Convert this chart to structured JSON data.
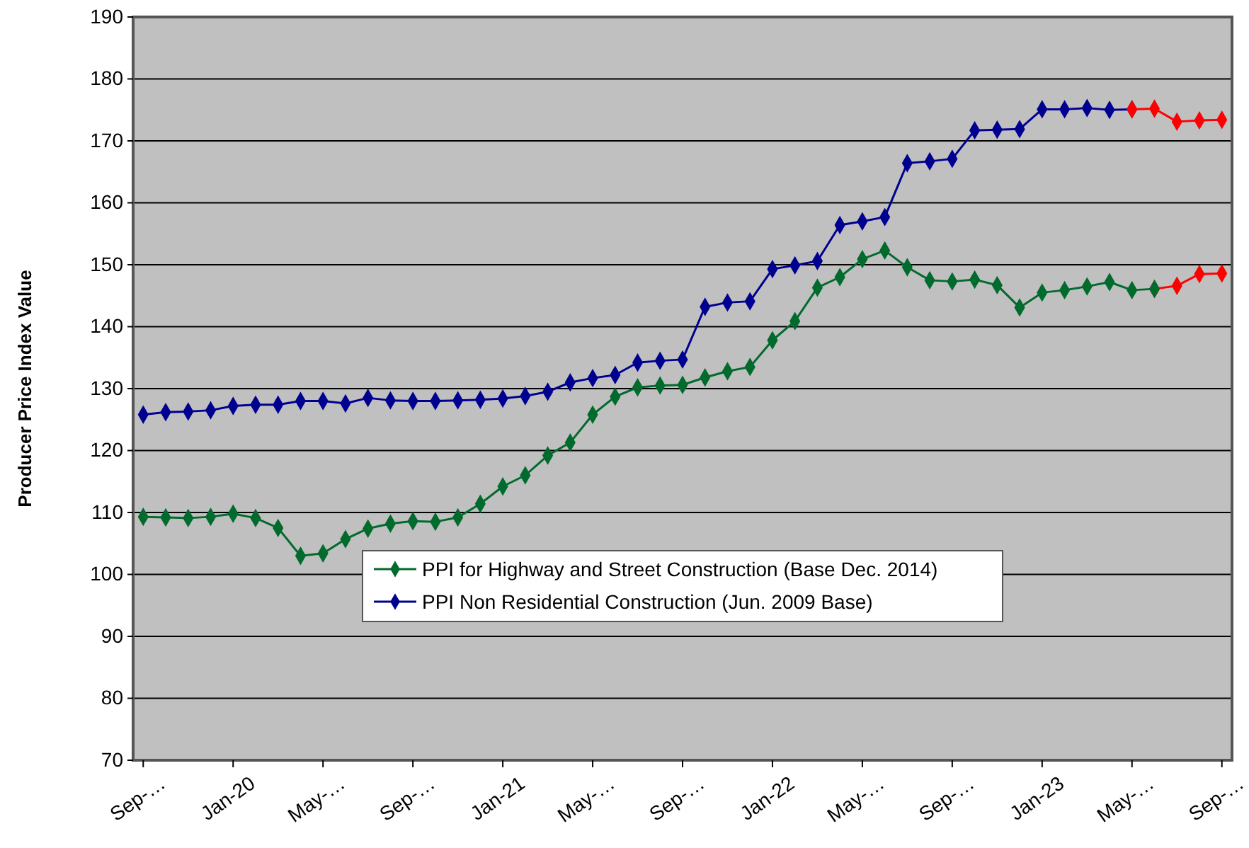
{
  "chart_data": {
    "type": "line",
    "ylabel": "Producer Price Index Value",
    "categories": [
      "Sep-…",
      null,
      null,
      null,
      "Jan-20",
      null,
      null,
      null,
      "May-…",
      null,
      null,
      null,
      "Sep-…",
      null,
      null,
      null,
      "Jan-21",
      null,
      null,
      null,
      "May-…",
      null,
      null,
      null,
      "Sep-…",
      null,
      null,
      null,
      "Jan-22",
      null,
      null,
      null,
      "May-…",
      null,
      null,
      null,
      "Sep-…",
      null,
      null,
      null,
      "Jan-23",
      null,
      null,
      null,
      "May-…",
      null,
      null,
      null,
      "Sep-…"
    ],
    "series": [
      {
        "color": "#ff0000",
        "values": [
          null,
          null,
          null,
          null,
          null,
          null,
          null,
          null,
          null,
          null,
          null,
          null,
          null,
          null,
          null,
          null,
          null,
          null,
          null,
          null,
          null,
          null,
          null,
          null,
          null,
          null,
          null,
          null,
          null,
          null,
          null,
          null,
          null,
          null,
          null,
          null,
          null,
          null,
          null,
          null,
          null,
          null,
          null,
          null,
          null,
          146.1,
          146.6,
          148.5,
          148.6
        ]
      },
      {
        "name": "PPI for Highway and Street Construction (Base Dec. 2014)",
        "color": "#006b2d",
        "values": [
          109.3,
          109.2,
          109.1,
          109.3,
          109.8,
          109.1,
          107.5,
          103.0,
          103.4,
          105.7,
          107.4,
          108.2,
          108.6,
          108.5,
          109.2,
          111.4,
          114.2,
          116.0,
          119.2,
          121.3,
          125.8,
          128.7,
          130.2,
          130.5,
          130.6,
          131.8,
          132.8,
          133.5,
          137.8,
          140.9,
          146.3,
          148.0,
          150.9,
          152.3,
          149.6,
          147.5,
          147.3,
          147.6,
          146.7,
          143.1,
          145.5,
          145.9,
          146.5,
          147.2,
          145.9,
          146.1,
          null,
          null,
          null
        ]
      },
      {
        "name": "PPI Non Residential Construction (Jun. 2009 Base)",
        "color": "#000090",
        "values": [
          125.8,
          126.2,
          126.3,
          126.5,
          127.2,
          127.4,
          127.4,
          128.0,
          128.0,
          127.6,
          128.5,
          128.1,
          128.0,
          128.0,
          128.1,
          128.2,
          128.4,
          128.8,
          129.5,
          131.0,
          131.7,
          132.2,
          134.2,
          134.5,
          134.7,
          143.2,
          143.9,
          144.1,
          149.3,
          149.9,
          150.6,
          156.4,
          157.0,
          157.7,
          166.4,
          166.7,
          167.1,
          171.7,
          171.8,
          171.9,
          175.1,
          175.1,
          175.3,
          175.0,
          175.1,
          null,
          null,
          null,
          null
        ]
      },
      {
        "color": "#ff0000",
        "values": [
          null,
          null,
          null,
          null,
          null,
          null,
          null,
          null,
          null,
          null,
          null,
          null,
          null,
          null,
          null,
          null,
          null,
          null,
          null,
          null,
          null,
          null,
          null,
          null,
          null,
          null,
          null,
          null,
          null,
          null,
          null,
          null,
          null,
          null,
          null,
          null,
          null,
          null,
          null,
          null,
          null,
          null,
          null,
          null,
          175.1,
          175.2,
          173.1,
          173.3,
          173.4
        ]
      }
    ],
    "ylim": [
      70,
      190
    ],
    "yticks": [
      70,
      80,
      90,
      100,
      110,
      120,
      130,
      140,
      150,
      160,
      170,
      180,
      190
    ],
    "grid": "y",
    "legend": "bottom",
    "marker": "diamond",
    "line_style": "solid"
  }
}
